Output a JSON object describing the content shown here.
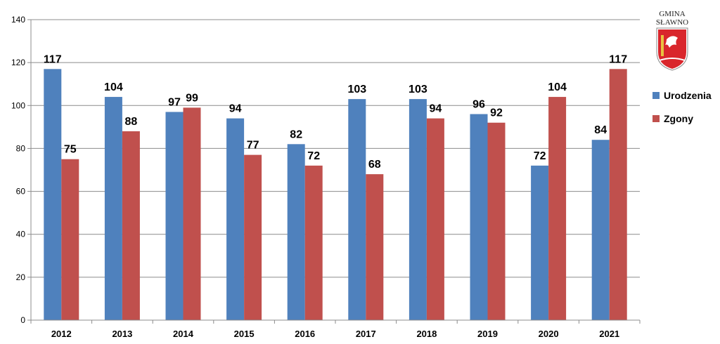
{
  "chart_data": {
    "type": "bar",
    "categories": [
      "2012",
      "2013",
      "2014",
      "2015",
      "2016",
      "2017",
      "2018",
      "2019",
      "2020",
      "2021"
    ],
    "series": [
      {
        "name": "Urodzenia",
        "color": "#4F81BD",
        "values": [
          117,
          104,
          97,
          94,
          82,
          103,
          103,
          96,
          72,
          84
        ]
      },
      {
        "name": "Zgony",
        "color": "#C0504D",
        "values": [
          75,
          88,
          99,
          77,
          72,
          68,
          94,
          92,
          104,
          117
        ]
      }
    ],
    "ylim": [
      0,
      140
    ],
    "yticks": [
      0,
      20,
      40,
      60,
      80,
      100,
      120,
      140
    ],
    "grid": true,
    "legend_position": "right"
  },
  "logo": {
    "line1": "GMINA",
    "line2": "SŁAWNO"
  }
}
